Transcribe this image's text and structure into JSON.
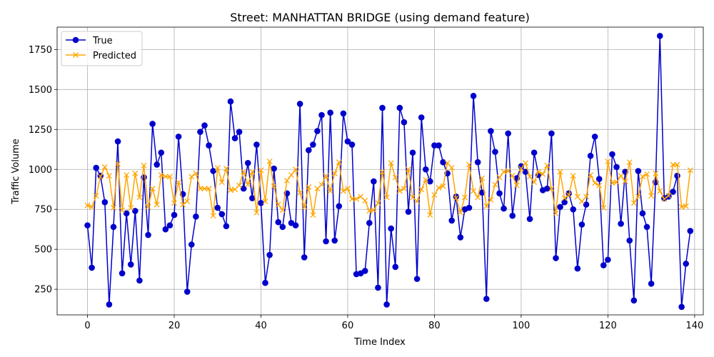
{
  "chart_data": {
    "type": "line",
    "title": "Street: MANHATTAN BRIDGE (using demand feature)",
    "xlabel": "Time Index",
    "ylabel": "Traffic Volume",
    "xlim": [
      -7,
      142
    ],
    "ylim": [
      90,
      1890
    ],
    "xticks": [
      0,
      20,
      40,
      60,
      80,
      100,
      120,
      140
    ],
    "yticks": [
      250,
      500,
      750,
      1000,
      1250,
      1500,
      1750
    ],
    "grid": true,
    "legend_position": "upper-left",
    "series": [
      {
        "name": "True",
        "color": "#0000cc",
        "marker": "circle",
        "values": [
          650,
          385,
          1010,
          960,
          795,
          155,
          640,
          1175,
          350,
          725,
          405,
          740,
          305,
          950,
          590,
          1285,
          1030,
          1105,
          625,
          650,
          715,
          1205,
          845,
          235,
          530,
          705,
          1235,
          1275,
          1150,
          990,
          760,
          720,
          645,
          1425,
          1195,
          1235,
          880,
          1040,
          820,
          1155,
          790,
          290,
          465,
          1005,
          670,
          640,
          850,
          665,
          650,
          1410,
          450,
          1120,
          1155,
          1240,
          1340,
          550,
          1355,
          555,
          770,
          1350,
          1175,
          1155,
          345,
          350,
          365,
          665,
          925,
          260,
          1385,
          155,
          630,
          390,
          1385,
          1295,
          735,
          1105,
          315,
          1325,
          1000,
          925,
          1150,
          1150,
          1045,
          975,
          680,
          830,
          575,
          750,
          760,
          1460,
          1045,
          855,
          190,
          1240,
          1110,
          850,
          755,
          1225,
          710,
          945,
          1020,
          985,
          690,
          1105,
          965,
          870,
          880,
          1225,
          445,
          765,
          795,
          850,
          750,
          380,
          655,
          780,
          1085,
          1205,
          940,
          400,
          435,
          1095,
          1015,
          660,
          985,
          555,
          180,
          990,
          725,
          640,
          285,
          920,
          1835,
          820,
          830,
          860,
          960,
          140,
          410,
          615
        ]
      },
      {
        "name": "Predicted",
        "color": "#ffa500",
        "marker": "x",
        "values": [
          775,
          765,
          835,
          955,
          1015,
          960,
          760,
          1035,
          745,
          965,
          760,
          975,
          825,
          1025,
          765,
          880,
          780,
          965,
          955,
          955,
          790,
          920,
          780,
          800,
          955,
          975,
          880,
          880,
          880,
          710,
          1010,
          920,
          1005,
          870,
          875,
          900,
          985,
          905,
          985,
          730,
          995,
          800,
          1050,
          895,
          780,
          745,
          930,
          965,
          1000,
          855,
          765,
          890,
          715,
          880,
          905,
          960,
          865,
          975,
          1045,
          865,
          880,
          815,
          815,
          830,
          805,
          740,
          745,
          790,
          985,
          825,
          1040,
          950,
          865,
          880,
          1000,
          825,
          800,
          875,
          935,
          715,
          840,
          885,
          895,
          1040,
          1010,
          820,
          730,
          825,
          1030,
          865,
          825,
          945,
          770,
          810,
          905,
          950,
          985,
          990,
          960,
          900,
          1005,
          1040,
          955,
          920,
          985,
          970,
          1025,
          880,
          725,
          985,
          820,
          840,
          960,
          830,
          800,
          830,
          965,
          915,
          900,
          760,
          1050,
          915,
          920,
          960,
          925,
          1045,
          790,
          830,
          955,
          970,
          835,
          975,
          865,
          815,
          835,
          1030,
          1030,
          765,
          770,
          995
        ]
      }
    ]
  }
}
